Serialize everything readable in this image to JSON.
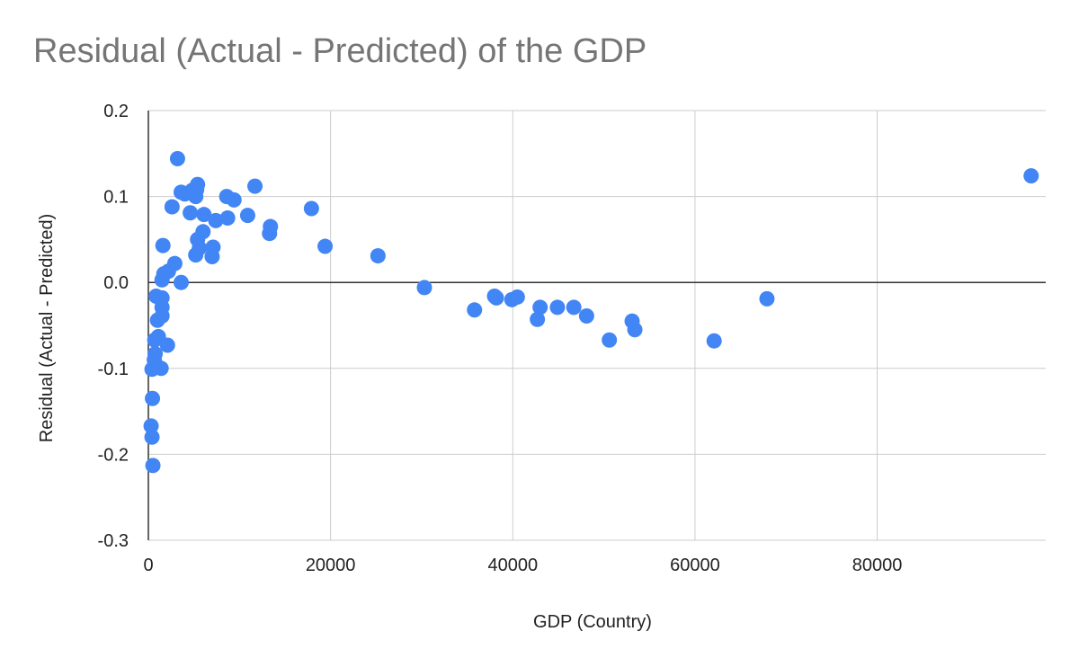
{
  "chart_data": {
    "type": "scatter",
    "title": "Residual (Actual - Predicted) of the GDP",
    "xlabel": "GDP (Country)",
    "ylabel": "Residual (Actual - Predicted)",
    "xlim": [
      0,
      98500
    ],
    "ylim": [
      -0.3,
      0.2
    ],
    "x_ticks": [
      0,
      20000,
      40000,
      60000,
      80000
    ],
    "x_tick_labels": [
      "0",
      "20000",
      "40000",
      "60000",
      "80000"
    ],
    "y_ticks": [
      -0.3,
      -0.2,
      -0.1,
      0.0,
      0.1,
      0.2
    ],
    "y_tick_labels": [
      "-0.3",
      "-0.2",
      "-0.1",
      "0.0",
      "0.1",
      "0.2"
    ],
    "grid": true,
    "legend": "none",
    "point_color": "#4285f4",
    "points": [
      {
        "x": 300,
        "y": -0.167
      },
      {
        "x": 400,
        "y": -0.18
      },
      {
        "x": 500,
        "y": -0.213
      },
      {
        "x": 450,
        "y": -0.135
      },
      {
        "x": 400,
        "y": -0.101
      },
      {
        "x": 650,
        "y": -0.09
      },
      {
        "x": 750,
        "y": -0.083
      },
      {
        "x": 900,
        "y": -0.097
      },
      {
        "x": 700,
        "y": -0.067
      },
      {
        "x": 1100,
        "y": -0.063
      },
      {
        "x": 1400,
        "y": -0.1
      },
      {
        "x": 2100,
        "y": -0.073
      },
      {
        "x": 1000,
        "y": -0.044
      },
      {
        "x": 1500,
        "y": -0.039
      },
      {
        "x": 1500,
        "y": -0.029
      },
      {
        "x": 850,
        "y": -0.016
      },
      {
        "x": 1500,
        "y": -0.018
      },
      {
        "x": 1500,
        "y": 0.003
      },
      {
        "x": 1700,
        "y": 0.01
      },
      {
        "x": 2200,
        "y": 0.013
      },
      {
        "x": 3600,
        "y": 0.0
      },
      {
        "x": 2900,
        "y": 0.022
      },
      {
        "x": 1600,
        "y": 0.043
      },
      {
        "x": 2600,
        "y": 0.088
      },
      {
        "x": 3200,
        "y": 0.144
      },
      {
        "x": 3600,
        "y": 0.105
      },
      {
        "x": 4000,
        "y": 0.103
      },
      {
        "x": 4600,
        "y": 0.081
      },
      {
        "x": 4800,
        "y": 0.107
      },
      {
        "x": 5200,
        "y": 0.1
      },
      {
        "x": 5300,
        "y": 0.108
      },
      {
        "x": 5400,
        "y": 0.114
      },
      {
        "x": 5200,
        "y": 0.032
      },
      {
        "x": 5400,
        "y": 0.05
      },
      {
        "x": 5600,
        "y": 0.04
      },
      {
        "x": 6000,
        "y": 0.059
      },
      {
        "x": 6100,
        "y": 0.079
      },
      {
        "x": 7000,
        "y": 0.03
      },
      {
        "x": 7100,
        "y": 0.041
      },
      {
        "x": 7400,
        "y": 0.072
      },
      {
        "x": 8600,
        "y": 0.1
      },
      {
        "x": 8700,
        "y": 0.075
      },
      {
        "x": 9400,
        "y": 0.096
      },
      {
        "x": 10900,
        "y": 0.078
      },
      {
        "x": 11700,
        "y": 0.112
      },
      {
        "x": 13300,
        "y": 0.057
      },
      {
        "x": 13400,
        "y": 0.065
      },
      {
        "x": 17900,
        "y": 0.086
      },
      {
        "x": 19400,
        "y": 0.042
      },
      {
        "x": 25200,
        "y": 0.031
      },
      {
        "x": 30300,
        "y": -0.006
      },
      {
        "x": 35800,
        "y": -0.032
      },
      {
        "x": 38000,
        "y": -0.016
      },
      {
        "x": 38200,
        "y": -0.018
      },
      {
        "x": 39900,
        "y": -0.02
      },
      {
        "x": 40500,
        "y": -0.017
      },
      {
        "x": 42700,
        "y": -0.043
      },
      {
        "x": 43000,
        "y": -0.029
      },
      {
        "x": 44900,
        "y": -0.029
      },
      {
        "x": 46700,
        "y": -0.029
      },
      {
        "x": 48100,
        "y": -0.039
      },
      {
        "x": 50600,
        "y": -0.067
      },
      {
        "x": 53100,
        "y": -0.045
      },
      {
        "x": 53400,
        "y": -0.055
      },
      {
        "x": 62100,
        "y": -0.068
      },
      {
        "x": 67900,
        "y": -0.019
      },
      {
        "x": 96900,
        "y": 0.124
      }
    ]
  }
}
